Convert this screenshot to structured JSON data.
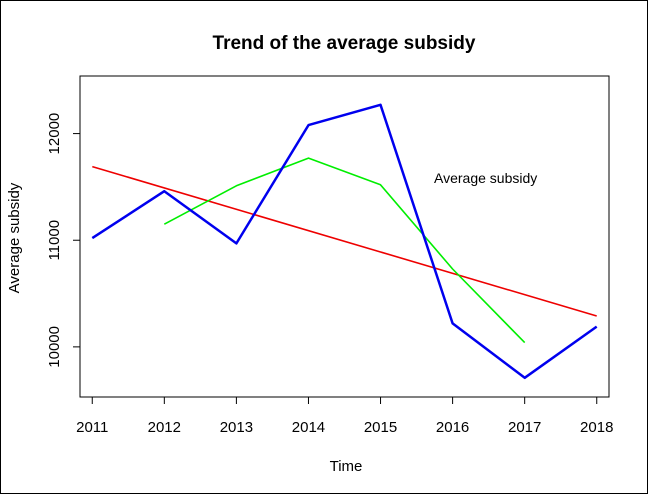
{
  "chart_data": {
    "type": "line",
    "title": "Trend of the average subsidy",
    "xlabel": "Time",
    "ylabel": "Average subsidy",
    "annotation": "Average subsidy",
    "x": [
      2011,
      2012,
      2013,
      2014,
      2015,
      2016,
      2017,
      2018
    ],
    "x_ticks": [
      "2011",
      "2012",
      "2013",
      "2014",
      "2015",
      "2016",
      "2017",
      "2018"
    ],
    "y_ticks": [
      10000,
      11000,
      12000
    ],
    "y_tick_labels": [
      "10000",
      "11000",
      "12000"
    ],
    "xlim": [
      2010.83,
      2018.17
    ],
    "ylim": [
      9530,
      12540
    ],
    "grid": false,
    "series": [
      {
        "color": "#0000ee",
        "x": [
          2011,
          2012,
          2013,
          2014,
          2015,
          2016,
          2017,
          2018
        ],
        "values": [
          11020,
          11460,
          10970,
          12080,
          12270,
          10220,
          9710,
          10190
        ]
      },
      {
        "color": "#00ee00",
        "x": [
          2012,
          2013,
          2014,
          2015,
          2016,
          2017
        ],
        "values": [
          11150,
          11510,
          11770,
          11520,
          10730,
          10040
        ]
      },
      {
        "color": "#ee0000",
        "x": [
          2011,
          2018
        ],
        "values": [
          11690,
          10290
        ]
      }
    ]
  }
}
